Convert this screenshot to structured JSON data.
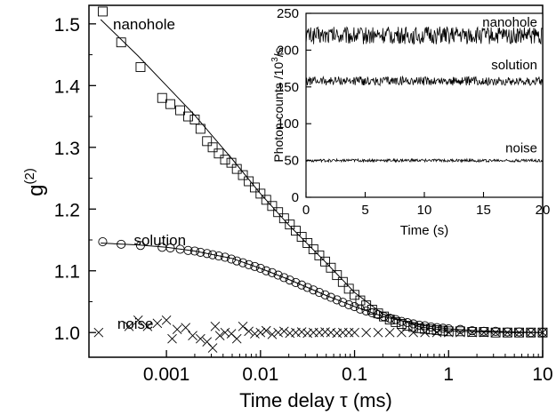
{
  "chart_data": [
    {
      "type": "scatter",
      "xlabel": "Time delay τ (ms)",
      "ylabel": "g(2)",
      "ylabel_base": "g",
      "ylabel_sup": "(2)",
      "xscale": "log",
      "xlim": [
        0.00015,
        10
      ],
      "ylim": [
        0.96,
        1.53
      ],
      "xticks": [
        0.001,
        0.01,
        0.1,
        1,
        10
      ],
      "xtick_labels": [
        "0.001",
        "0.01",
        "0.1",
        "1",
        "10"
      ],
      "yticks": [
        1.0,
        1.1,
        1.2,
        1.3,
        1.4,
        1.5
      ],
      "ytick_labels": [
        "1.0",
        "1.1",
        "1.2",
        "1.3",
        "1.4",
        "1.5"
      ],
      "series": [
        {
          "name": "nanohole",
          "marker": "square",
          "label_at": [
            0.00027,
            1.5
          ],
          "points": [
            [
              0.00021,
              1.52
            ],
            [
              0.00033,
              1.47
            ],
            [
              0.00053,
              1.43
            ],
            [
              0.0009,
              1.38
            ],
            [
              0.0011,
              1.37
            ],
            [
              0.0014,
              1.36
            ],
            [
              0.0017,
              1.35
            ],
            [
              0.002,
              1.345
            ],
            [
              0.0023,
              1.33
            ],
            [
              0.0027,
              1.31
            ],
            [
              0.0031,
              1.3
            ],
            [
              0.0036,
              1.29
            ],
            [
              0.0042,
              1.28
            ],
            [
              0.0049,
              1.275
            ],
            [
              0.0056,
              1.265
            ],
            [
              0.0065,
              1.255
            ],
            [
              0.0075,
              1.245
            ],
            [
              0.0087,
              1.235
            ],
            [
              0.01,
              1.225
            ],
            [
              0.0115,
              1.215
            ],
            [
              0.0133,
              1.205
            ],
            [
              0.0154,
              1.195
            ],
            [
              0.0178,
              1.185
            ],
            [
              0.0205,
              1.175
            ],
            [
              0.0237,
              1.165
            ],
            [
              0.0274,
              1.155
            ],
            [
              0.0316,
              1.145
            ],
            [
              0.0365,
              1.135
            ],
            [
              0.0422,
              1.125
            ],
            [
              0.0487,
              1.115
            ],
            [
              0.056,
              1.105
            ],
            [
              0.065,
              1.093
            ],
            [
              0.075,
              1.082
            ],
            [
              0.087,
              1.071
            ],
            [
              0.1,
              1.061
            ],
            [
              0.115,
              1.052
            ],
            [
              0.133,
              1.044
            ],
            [
              0.154,
              1.037
            ],
            [
              0.178,
              1.031
            ],
            [
              0.205,
              1.026
            ],
            [
              0.237,
              1.021
            ],
            [
              0.274,
              1.017
            ],
            [
              0.316,
              1.014
            ],
            [
              0.365,
              1.011
            ],
            [
              0.422,
              1.009
            ],
            [
              0.487,
              1.007
            ],
            [
              0.56,
              1.006
            ],
            [
              0.65,
              1.005
            ],
            [
              0.75,
              1.004
            ],
            [
              0.87,
              1.003
            ],
            [
              1.0,
              1.002
            ],
            [
              1.33,
              1.002
            ],
            [
              1.78,
              1.001
            ],
            [
              2.37,
              1.001
            ],
            [
              3.16,
              1.0
            ],
            [
              4.22,
              1.0
            ],
            [
              5.62,
              1.0
            ],
            [
              7.5,
              1.0
            ],
            [
              10.0,
              1.0
            ]
          ],
          "fit": [
            [
              0.0002,
              1.507
            ],
            [
              0.0005,
              1.448
            ],
            [
              0.001,
              1.4
            ],
            [
              0.002,
              1.352
            ],
            [
              0.005,
              1.281
            ],
            [
              0.01,
              1.225
            ],
            [
              0.02,
              1.174
            ],
            [
              0.05,
              1.113
            ],
            [
              0.1,
              1.065
            ],
            [
              0.2,
              1.03
            ],
            [
              0.5,
              1.009
            ],
            [
              1.0,
              1.003
            ],
            [
              2.0,
              1.001
            ],
            [
              5.0,
              1.0
            ],
            [
              10.0,
              1.0
            ]
          ]
        },
        {
          "name": "solution",
          "marker": "circle",
          "label_at": [
            0.00045,
            1.15
          ],
          "points": [
            [
              0.00021,
              1.147
            ],
            [
              0.00033,
              1.143
            ],
            [
              0.00053,
              1.141
            ],
            [
              0.0009,
              1.138
            ],
            [
              0.0011,
              1.137
            ],
            [
              0.0014,
              1.135
            ],
            [
              0.0017,
              1.133
            ],
            [
              0.002,
              1.132
            ],
            [
              0.0023,
              1.13
            ],
            [
              0.0027,
              1.128
            ],
            [
              0.0031,
              1.126
            ],
            [
              0.0036,
              1.124
            ],
            [
              0.0042,
              1.122
            ],
            [
              0.0049,
              1.119
            ],
            [
              0.0056,
              1.116
            ],
            [
              0.0065,
              1.113
            ],
            [
              0.0075,
              1.11
            ],
            [
              0.0087,
              1.107
            ],
            [
              0.01,
              1.104
            ],
            [
              0.0115,
              1.1
            ],
            [
              0.0133,
              1.097
            ],
            [
              0.0154,
              1.093
            ],
            [
              0.0178,
              1.089
            ],
            [
              0.0205,
              1.085
            ],
            [
              0.0237,
              1.081
            ],
            [
              0.0274,
              1.077
            ],
            [
              0.0316,
              1.073
            ],
            [
              0.0365,
              1.069
            ],
            [
              0.0422,
              1.065
            ],
            [
              0.0487,
              1.061
            ],
            [
              0.056,
              1.057
            ],
            [
              0.065,
              1.053
            ],
            [
              0.075,
              1.049
            ],
            [
              0.087,
              1.045
            ],
            [
              0.1,
              1.042
            ],
            [
              0.115,
              1.038
            ],
            [
              0.133,
              1.035
            ],
            [
              0.154,
              1.032
            ],
            [
              0.178,
              1.029
            ],
            [
              0.205,
              1.026
            ],
            [
              0.237,
              1.023
            ],
            [
              0.274,
              1.021
            ],
            [
              0.316,
              1.018
            ],
            [
              0.365,
              1.016
            ],
            [
              0.422,
              1.014
            ],
            [
              0.487,
              1.012
            ],
            [
              0.56,
              1.011
            ],
            [
              0.65,
              1.009
            ],
            [
              0.75,
              1.008
            ],
            [
              0.87,
              1.007
            ],
            [
              1.0,
              1.006
            ],
            [
              1.33,
              1.005
            ],
            [
              1.78,
              1.003
            ],
            [
              2.37,
              1.002
            ],
            [
              3.16,
              1.002
            ],
            [
              4.22,
              1.001
            ],
            [
              5.62,
              1.001
            ],
            [
              7.5,
              1.0
            ],
            [
              10.0,
              1.0
            ]
          ],
          "fit": [
            [
              0.0002,
              1.145
            ],
            [
              0.0005,
              1.142
            ],
            [
              0.001,
              1.138
            ],
            [
              0.002,
              1.132
            ],
            [
              0.005,
              1.12
            ],
            [
              0.01,
              1.104
            ],
            [
              0.02,
              1.086
            ],
            [
              0.05,
              1.06
            ],
            [
              0.1,
              1.042
            ],
            [
              0.2,
              1.026
            ],
            [
              0.5,
              1.012
            ],
            [
              1.0,
              1.006
            ],
            [
              2.0,
              1.003
            ],
            [
              5.0,
              1.001
            ],
            [
              10.0,
              1.0
            ]
          ]
        },
        {
          "name": "noise",
          "marker": "cross",
          "label_at": [
            0.0003,
            1.015
          ],
          "points": [
            [
              0.00019,
              1.0
            ],
            [
              0.0004,
              1.01
            ],
            [
              0.0005,
              1.02
            ],
            [
              0.00063,
              1.01
            ],
            [
              0.0008,
              1.015
            ],
            [
              0.001,
              1.02
            ],
            [
              0.00115,
              0.99
            ],
            [
              0.0013,
              1.005
            ],
            [
              0.0016,
              1.008
            ],
            [
              0.0019,
              0.995
            ],
            [
              0.0023,
              0.99
            ],
            [
              0.0027,
              0.985
            ],
            [
              0.0031,
              0.975
            ],
            [
              0.0033,
              1.01
            ],
            [
              0.0037,
              0.995
            ],
            [
              0.0042,
              1.0
            ],
            [
              0.0049,
              0.998
            ],
            [
              0.0056,
              0.99
            ],
            [
              0.0065,
              1.01
            ],
            [
              0.0075,
              1.002
            ],
            [
              0.0087,
              0.998
            ],
            [
              0.01,
              1.0
            ],
            [
              0.0115,
              1.003
            ],
            [
              0.0133,
              0.997
            ],
            [
              0.0154,
              1.0
            ],
            [
              0.0178,
              1.002
            ],
            [
              0.0205,
              0.999
            ],
            [
              0.0237,
              1.0
            ],
            [
              0.0274,
              1.001
            ],
            [
              0.0316,
              0.999
            ],
            [
              0.0365,
              1.0
            ],
            [
              0.0422,
              1.0
            ],
            [
              0.0487,
              1.001
            ],
            [
              0.056,
              1.0
            ],
            [
              0.065,
              0.999
            ],
            [
              0.075,
              1.0
            ],
            [
              0.087,
              1.0
            ],
            [
              0.1,
              1.0
            ],
            [
              0.133,
              1.0
            ],
            [
              0.178,
              1.0
            ],
            [
              0.237,
              1.0
            ],
            [
              0.316,
              1.0
            ],
            [
              0.422,
              1.0
            ],
            [
              0.56,
              1.0
            ],
            [
              0.75,
              1.0
            ],
            [
              1.0,
              1.0
            ],
            [
              1.33,
              1.0
            ],
            [
              1.78,
              1.0
            ],
            [
              2.37,
              1.0
            ],
            [
              3.16,
              1.0
            ],
            [
              4.22,
              1.0
            ],
            [
              5.62,
              1.0
            ],
            [
              7.5,
              1.0
            ],
            [
              10.0,
              1.0
            ]
          ]
        }
      ]
    },
    {
      "type": "line",
      "inset": true,
      "xlabel": "Time (s)",
      "ylabel": "Photon counts /10³/s",
      "ylabel_main": "Photon counts /10",
      "ylabel_sup": "3",
      "ylabel_tail": "/s",
      "xlim": [
        0,
        20
      ],
      "ylim": [
        0,
        250
      ],
      "xticks": [
        0,
        5,
        10,
        15,
        20
      ],
      "xtick_labels": [
        "0",
        "5",
        "10",
        "15",
        "20"
      ],
      "yticks": [
        0,
        50,
        100,
        150,
        200,
        250
      ],
      "ytick_labels": [
        "0",
        "50",
        "100",
        "150",
        "200",
        "250"
      ],
      "series": [
        {
          "name": "nanohole",
          "mean": 220,
          "amplitude": 12,
          "label_y": 238
        },
        {
          "name": "solution",
          "mean": 158,
          "amplitude": 6,
          "label_y": 180
        },
        {
          "name": "noise",
          "mean": 50,
          "amplitude": 2,
          "label_y": 67
        }
      ]
    }
  ]
}
